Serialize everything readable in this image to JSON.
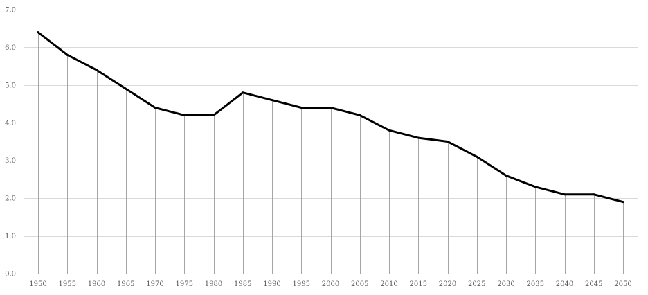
{
  "chart_data": {
    "type": "line",
    "title": "",
    "xlabel": "",
    "ylabel": "",
    "x": [
      "1950",
      "1955",
      "1960",
      "1965",
      "1970",
      "1975",
      "1980",
      "1985",
      "1990",
      "1995",
      "2000",
      "2005",
      "2010",
      "2015",
      "2020",
      "2025",
      "2030",
      "2035",
      "2040",
      "2045",
      "2050"
    ],
    "series": [
      {
        "values": [
          6.4,
          5.8,
          5.4,
          4.9,
          4.4,
          4.2,
          4.2,
          4.8,
          4.6,
          4.4,
          4.4,
          4.2,
          3.8,
          3.6,
          3.5,
          3.1,
          2.6,
          2.3,
          2.1,
          2.1,
          1.9
        ]
      }
    ],
    "ylim": [
      0,
      7
    ],
    "y_ticks": [
      "0.0",
      "1.0",
      "2.0",
      "3.0",
      "4.0",
      "5.0",
      "6.0",
      "7.0"
    ],
    "grid": true,
    "drop_lines": true,
    "legend": "none",
    "colors": {
      "series": "#000000",
      "grid": "#d9d9d9",
      "drop_lines": "#a6a6a6"
    }
  }
}
